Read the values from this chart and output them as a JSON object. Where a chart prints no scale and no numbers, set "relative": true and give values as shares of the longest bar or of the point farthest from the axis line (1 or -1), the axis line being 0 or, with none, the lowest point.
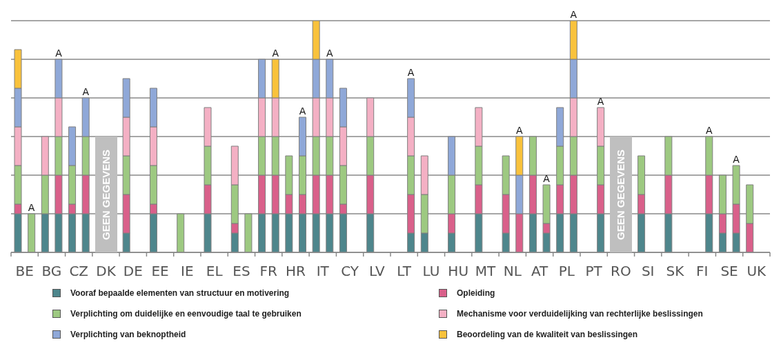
{
  "chart_data": {
    "type": "bar",
    "relative": true,
    "stacked": true,
    "grid": "y",
    "legend": "bottom",
    "categories": [
      "BE",
      null,
      "BG",
      null,
      "CZ",
      null,
      "DK",
      null,
      "DE",
      null,
      "EE",
      null,
      "IE",
      null,
      "EL",
      null,
      "ES",
      null,
      "FR",
      null,
      "HR",
      null,
      "IT",
      null,
      "CY",
      null,
      "LV",
      null,
      "LT",
      null,
      "LU",
      null,
      "HU",
      null,
      "MT",
      null,
      "NL",
      null,
      "AT",
      null,
      "PL",
      null,
      "PT",
      null,
      "RO",
      null,
      "SI",
      null,
      "SK",
      null,
      "FI",
      null,
      "SE",
      null,
      "UK",
      null
    ],
    "series": [
      {
        "name": "Vooraf bepaalde elementen van structuur en motivering",
        "color": "#4e868c",
        "values": [
          0.1667,
          null,
          0.1667,
          0.1667,
          0.1667,
          0.1667,
          null,
          null,
          0.0833,
          null,
          0.1667,
          null,
          null,
          null,
          0.1667,
          null,
          0.0833,
          null,
          0.1667,
          0.1667,
          0.1667,
          0.1667,
          0.1667,
          0.1667,
          0.1667,
          null,
          0.1667,
          null,
          null,
          0.0833,
          0.0833,
          null,
          0.0833,
          null,
          0.1667,
          null,
          0.0833,
          null,
          0.1667,
          0.0833,
          0.1667,
          0.1667,
          null,
          0.1667,
          null,
          null,
          0.1667,
          null,
          0.1667,
          null,
          null,
          0.1667,
          0.0833,
          0.0833,
          null,
          null
        ]
      },
      {
        "name": "Opleiding",
        "color": "#d9608a",
        "values": [
          0.0417,
          null,
          null,
          0.1667,
          0.0417,
          0.1667,
          null,
          null,
          0.1667,
          null,
          0.0417,
          null,
          null,
          null,
          0.125,
          null,
          0.0417,
          null,
          0.1667,
          0.1667,
          0.0833,
          0.0833,
          0.1667,
          0.1667,
          0.0417,
          null,
          0.1667,
          null,
          null,
          0.1667,
          null,
          null,
          0.0833,
          null,
          0.125,
          null,
          0.1667,
          0.1667,
          0.1667,
          0.0417,
          0.125,
          0.1667,
          null,
          0.125,
          null,
          null,
          0.0833,
          null,
          0.1667,
          null,
          null,
          0.1667,
          0.0833,
          0.125,
          0.125,
          null
        ]
      },
      {
        "name": "Verplichting om duidelijke en eenvoudige taal te gebruiken",
        "color": "#9dc981",
        "values": [
          0.1667,
          0.1667,
          0.1667,
          0.1667,
          0.1667,
          0.1667,
          null,
          null,
          0.1667,
          null,
          0.1667,
          null,
          0.1667,
          null,
          0.1667,
          null,
          0.1667,
          0.1667,
          0.1667,
          0.1667,
          0.1667,
          0.1667,
          0.1667,
          0.1667,
          0.1667,
          null,
          0.1667,
          null,
          null,
          0.1667,
          0.1667,
          null,
          0.1667,
          null,
          0.1667,
          null,
          0.1667,
          null,
          0.1667,
          0.1667,
          0.1667,
          0.1667,
          null,
          0.1667,
          null,
          null,
          0.1667,
          null,
          0.1667,
          null,
          null,
          0.1667,
          0.1667,
          0.1667,
          0.1667,
          null
        ]
      },
      {
        "name": "Mechanisme voor verduidelijking van rechterlijke beslissingen",
        "color": "#f4b0c4",
        "values": [
          0.1667,
          null,
          0.1667,
          0.1667,
          null,
          null,
          null,
          null,
          0.1667,
          null,
          0.1667,
          null,
          null,
          null,
          0.1667,
          null,
          0.1667,
          null,
          0.1667,
          0.1667,
          null,
          null,
          0.1667,
          0.1667,
          0.1667,
          null,
          0.1667,
          null,
          null,
          0.1667,
          0.1667,
          null,
          null,
          null,
          0.1667,
          null,
          null,
          null,
          null,
          null,
          null,
          0.1667,
          null,
          0.1667,
          null,
          null,
          null,
          null,
          null,
          null,
          null,
          null,
          null,
          null,
          null,
          null
        ]
      },
      {
        "name": "Verplichting van beknoptheid",
        "color": "#8fa8d8",
        "values": [
          0.1667,
          null,
          null,
          0.1667,
          0.1667,
          0.1667,
          null,
          null,
          0.1667,
          null,
          0.1667,
          null,
          null,
          null,
          null,
          null,
          null,
          null,
          0.1667,
          null,
          null,
          0.1667,
          0.1667,
          0.1667,
          0.1667,
          null,
          null,
          null,
          null,
          0.1667,
          null,
          null,
          0.1667,
          null,
          null,
          null,
          null,
          0.1667,
          null,
          null,
          0.1667,
          0.1667,
          null,
          null,
          null,
          null,
          null,
          null,
          null,
          null,
          null,
          null,
          null,
          null,
          null,
          null
        ]
      },
      {
        "name": "Beoordeling van de kwaliteit van beslissingen",
        "color": "#f9c23c",
        "values": [
          0.1667,
          null,
          null,
          null,
          null,
          null,
          null,
          null,
          null,
          null,
          null,
          null,
          null,
          null,
          null,
          null,
          null,
          null,
          null,
          0.1667,
          null,
          null,
          0.1665,
          null,
          null,
          null,
          null,
          null,
          null,
          null,
          null,
          null,
          null,
          null,
          null,
          null,
          null,
          0.1667,
          null,
          null,
          null,
          0.1665,
          null,
          null,
          null,
          null,
          null,
          null,
          null,
          null,
          null,
          null,
          null,
          null,
          null,
          null
        ]
      }
    ],
    "totals": [
      null,
      "A",
      null,
      "A",
      null,
      "A",
      null,
      null,
      null,
      null,
      null,
      null,
      null,
      null,
      null,
      null,
      null,
      null,
      null,
      "A",
      null,
      "A",
      null,
      "A",
      null,
      null,
      null,
      null,
      null,
      "A",
      null,
      null,
      null,
      null,
      null,
      null,
      null,
      "A",
      null,
      "A",
      null,
      "A",
      null,
      "A",
      null,
      null,
      null,
      null,
      null,
      null,
      null,
      "A",
      null,
      "A",
      null,
      null
    ],
    "annotations": [
      "GEEN GEGEVENS",
      "GEEN GEGEVENS"
    ]
  }
}
